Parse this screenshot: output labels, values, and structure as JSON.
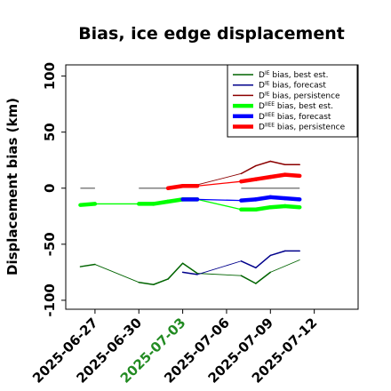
{
  "chart_data": {
    "type": "line",
    "title": "Bias, ice edge displacement",
    "ylabel": "Displacement bias (km)",
    "xlabel": "",
    "ylim": [
      -108,
      110
    ],
    "xlim": [
      "2025-06-25",
      "2025-07-15"
    ],
    "yticks": [
      100,
      50,
      0,
      -50,
      -100
    ],
    "xticks": [
      {
        "date": "2025-06-27",
        "label": "2025-06-27",
        "color": "#000000"
      },
      {
        "date": "2025-06-30",
        "label": "2025-06-30",
        "color": "#000000"
      },
      {
        "date": "2025-07-03",
        "label": "2025-07-03",
        "color": "#228B22"
      },
      {
        "date": "2025-07-06",
        "label": "2025-07-06",
        "color": "#000000"
      },
      {
        "date": "2025-07-09",
        "label": "2025-07-09",
        "color": "#000000"
      },
      {
        "date": "2025-07-12",
        "label": "2025-07-12",
        "color": "#000000"
      }
    ],
    "grid": false,
    "legend_position": "top-right",
    "series": [
      {
        "name": "D^IE bias, best est.",
        "legend_main": "D",
        "legend_sup": "IE",
        "legend_rest": " bias, best est.",
        "color": "#006400",
        "width": "thin",
        "points": [
          [
            "2025-06-26",
            -70
          ],
          [
            "2025-06-27",
            -68
          ],
          [
            "2025-06-30",
            -84
          ],
          [
            "2025-07-01",
            -86
          ],
          [
            "2025-07-02",
            -81
          ],
          [
            "2025-07-03",
            -67
          ],
          [
            "2025-07-04",
            -76
          ],
          [
            "2025-07-07",
            -78
          ],
          [
            "2025-07-08",
            -85
          ],
          [
            "2025-07-09",
            -75
          ],
          [
            "2025-07-11",
            -64
          ]
        ]
      },
      {
        "name": "D^IE bias, forecast",
        "legend_main": "D",
        "legend_sup": "IE",
        "legend_rest": " bias, forecast",
        "color": "#00008B",
        "width": "thin",
        "points": [
          [
            "2025-07-03",
            -75
          ],
          [
            "2025-07-04",
            -77
          ],
          [
            "2025-07-07",
            -65
          ],
          [
            "2025-07-08",
            -71
          ],
          [
            "2025-07-09",
            -60
          ],
          [
            "2025-07-10",
            -56
          ],
          [
            "2025-07-11",
            -56
          ]
        ]
      },
      {
        "name": "D^IE bias, persistence",
        "legend_main": "D",
        "legend_sup": "IE",
        "legend_rest": " bias, persistence",
        "color": "#8B0000",
        "width": "thin",
        "points": [
          [
            "2025-07-02",
            0
          ],
          [
            "2025-07-03",
            2
          ],
          [
            "2025-07-04",
            3
          ],
          [
            "2025-07-07",
            13
          ],
          [
            "2025-07-08",
            20
          ],
          [
            "2025-07-09",
            24
          ],
          [
            "2025-07-10",
            21
          ],
          [
            "2025-07-11",
            21
          ]
        ]
      },
      {
        "name": "D^IIEE bias, best est.",
        "legend_main": "D",
        "legend_sup": "IIEE",
        "legend_rest": " bias, best est.",
        "color": "#00FF00",
        "width": "thick",
        "points": [
          [
            "2025-06-26",
            -15
          ],
          [
            "2025-06-27",
            -14
          ],
          [
            "2025-06-30",
            -14
          ],
          [
            "2025-07-01",
            -14
          ],
          [
            "2025-07-02",
            -12
          ],
          [
            "2025-07-03",
            -10
          ],
          [
            "2025-07-04",
            -10
          ],
          [
            "2025-07-07",
            -19
          ],
          [
            "2025-07-08",
            -19
          ],
          [
            "2025-07-09",
            -17
          ],
          [
            "2025-07-10",
            -16
          ],
          [
            "2025-07-11",
            -17
          ]
        ]
      },
      {
        "name": "D^IIEE bias, forecast",
        "legend_main": "D",
        "legend_sup": "IIEE",
        "legend_rest": " bias, forecast",
        "color": "#0000FF",
        "width": "thick",
        "points": [
          [
            "2025-07-03",
            -10
          ],
          [
            "2025-07-04",
            -10
          ],
          [
            "2025-07-07",
            -11
          ],
          [
            "2025-07-08",
            -10
          ],
          [
            "2025-07-09",
            -8
          ],
          [
            "2025-07-10",
            -9
          ],
          [
            "2025-07-11",
            -10
          ]
        ]
      },
      {
        "name": "D^IIEE bias, persistence",
        "legend_main": "D",
        "legend_sup": "IIEE",
        "legend_rest": " bias, persistence",
        "color": "#FF0000",
        "width": "thick",
        "points": [
          [
            "2025-07-02",
            0
          ],
          [
            "2025-07-03",
            2
          ],
          [
            "2025-07-04",
            2
          ],
          [
            "2025-07-07",
            6
          ],
          [
            "2025-07-08",
            8
          ],
          [
            "2025-07-09",
            10
          ],
          [
            "2025-07-10",
            12
          ],
          [
            "2025-07-11",
            11
          ]
        ]
      }
    ],
    "zero_segments": [
      [
        "2025-06-26",
        "2025-06-27"
      ],
      [
        "2025-06-30",
        "2025-07-02"
      ],
      [
        "2025-07-07",
        "2025-07-11"
      ]
    ],
    "zero_color": "#808080"
  }
}
